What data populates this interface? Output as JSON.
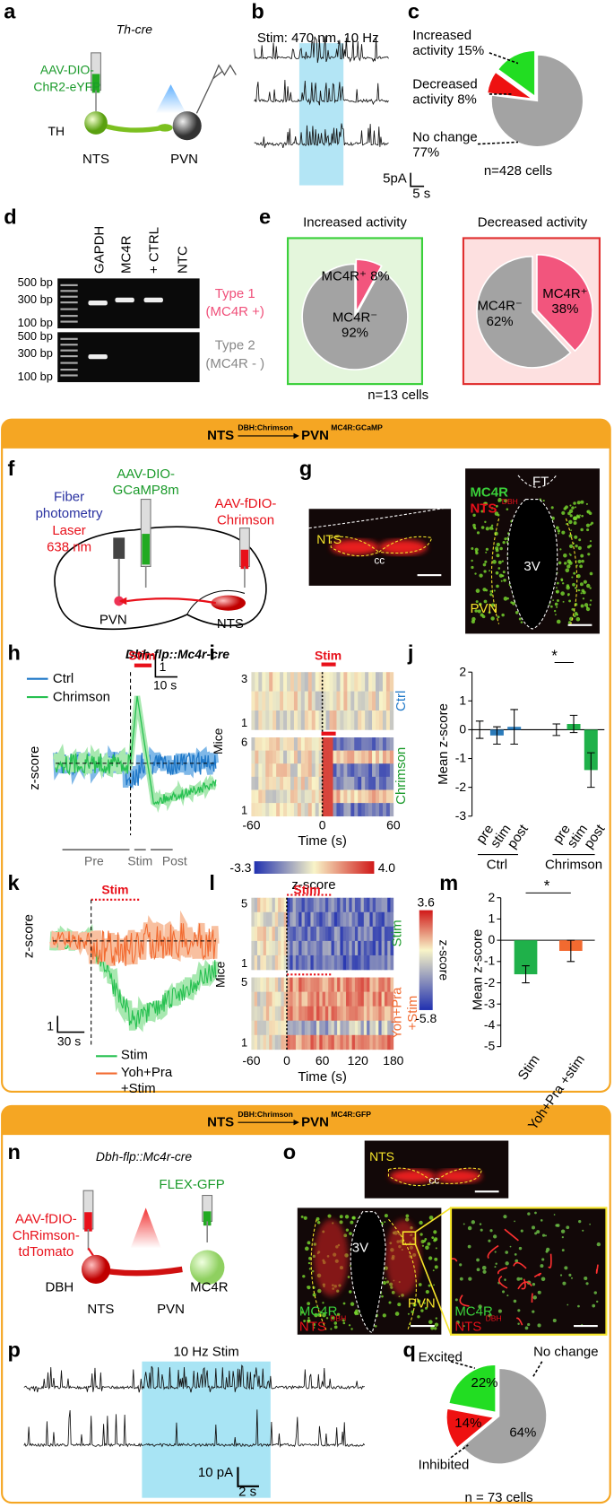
{
  "panels": {
    "a": {
      "letter": "a",
      "genotype": "Th-cre",
      "virus_1": "AAV-DIO-",
      "virus_2": "ChR2-eYFP",
      "cell": "TH",
      "source": "NTS",
      "target": "PVN"
    },
    "b": {
      "letter": "b",
      "stim": "Stim: 470 nm, 10 Hz",
      "scale_y": "5pA",
      "scale_x": "5 s"
    },
    "c": {
      "letter": "c",
      "n": "n=428 cells"
    },
    "d": {
      "letter": "d",
      "lanes": [
        "GAPDH",
        "MC4R",
        "+ CTRL",
        "NTC"
      ],
      "ladder": [
        "500 bp",
        "300 bp",
        "100 bp",
        "500 bp",
        "300 bp",
        "100 bp"
      ],
      "type1": [
        "Type 1",
        "(MC4R +)"
      ],
      "type2": [
        "Type 2",
        "(MC4R - )"
      ]
    },
    "e": {
      "letter": "e",
      "n": "n=13 cells"
    },
    "header1": {
      "pre": "NTS",
      "pre_sup": "DBH:Chrimson",
      "post": "PVN",
      "post_sup": "MC4R:GCaMP"
    },
    "f": {
      "letter": "f",
      "virus_1": [
        "AAV-DIO-",
        "GCaMP8m"
      ],
      "fiber": [
        "Fiber",
        "photometry"
      ],
      "laser": [
        "Laser",
        "638 nm"
      ],
      "virus_2": [
        "AAV-fDIO-",
        "Chrimson"
      ],
      "target": "PVN",
      "source": "NTS",
      "genotype": "Dbh-flp::Mc4r-cre"
    },
    "g": {
      "letter": "g",
      "nts": "NTS",
      "cc": "cc",
      "marker": "MC4R",
      "nts2": "NTS",
      "nts2_sup": "DBH",
      "ft": "FT",
      "v3": "3V",
      "pvn": "PVN"
    },
    "h": {
      "letter": "h",
      "stim": "Stim",
      "scale_y": "1",
      "scale_x": "10 s",
      "legend": [
        "Ctrl",
        "Chrimson"
      ],
      "ylabel": "z-score",
      "epochs": [
        "Pre",
        "Stim",
        "Post"
      ]
    },
    "i": {
      "letter": "i",
      "stim": "Stim",
      "ylabel": "Mice",
      "mice": [
        "3",
        "1",
        "6",
        "1"
      ],
      "groups": [
        "Ctrl",
        "Chrimson"
      ],
      "xticks": [
        "-60",
        "0",
        "60"
      ],
      "xlabel": "Time (s)",
      "cbar": [
        "-3.3",
        "4.0"
      ],
      "cbar_label": "z-score"
    },
    "j": {
      "letter": "j"
    },
    "k": {
      "letter": "k",
      "stim": "Stim",
      "ylabel": "z-score",
      "scale_y": "1",
      "scale_x": "30 s",
      "legend": [
        "Stim",
        "Yoh+Pra",
        "+Stim"
      ]
    },
    "l": {
      "letter": "l",
      "stim": "Stim",
      "ylabel": "Mice",
      "mice": [
        "5",
        "1",
        "5",
        "1"
      ],
      "groups": [
        "Stim",
        "Yoh+Pra",
        "+Stim"
      ],
      "xticks": [
        "-60",
        "0",
        "60",
        "120",
        "180"
      ],
      "xlabel": "Time (s)",
      "cbar": [
        "3.6",
        "-5.8"
      ],
      "cbar_label": "z-score"
    },
    "m": {
      "letter": "m"
    },
    "header2": {
      "pre": "NTS",
      "pre_sup": "DBH:Chrimson",
      "post": "PVN",
      "post_sup": "MC4R:GFP"
    },
    "n": {
      "letter": "n",
      "genotype": "Dbh-flp::Mc4r-cre",
      "virus_1": "FLEX-GFP",
      "virus_2": [
        "AAV-fDIO-",
        "ChRimson-",
        "tdTomato"
      ],
      "cell_1": "DBH",
      "cell_2": "MC4R",
      "source": "NTS",
      "target": "PVN"
    },
    "o": {
      "letter": "o",
      "nts": "NTS",
      "cc": "cc",
      "v3": "3V",
      "pvn": "PVN",
      "marker": [
        "MC4R",
        "MC4R"
      ],
      "nts2": [
        "NTS",
        "NTS"
      ],
      "nts2_sup": [
        "DBH",
        "DBH"
      ]
    },
    "p": {
      "letter": "p",
      "stim": "10 Hz Stim",
      "scale_y": "10 pA",
      "scale_x": "2 s"
    },
    "q": {
      "letter": "q",
      "n": "n = 73 cells"
    }
  },
  "chart_data": [
    {
      "type": "pie",
      "categories": [
        "Increased activity",
        "Decreased activity",
        "No change"
      ],
      "values": [
        15,
        8,
        77
      ],
      "value_labels": [
        "15%",
        "8%",
        "77%"
      ],
      "colors": [
        "#22dd22",
        "#ee1111",
        "#a3a3a3"
      ]
    },
    {
      "type": "pie",
      "title": "Increased activity",
      "categories": [
        "MC4R⁺",
        "MC4R⁻"
      ],
      "values": [
        8,
        92
      ],
      "value_labels": [
        "8%",
        "92%"
      ],
      "colors": [
        "#f2557d",
        "#a3a3a3"
      ]
    },
    {
      "type": "pie",
      "title": "Decreased activity",
      "categories": [
        "MC4R⁺",
        "MC4R⁻"
      ],
      "values": [
        38,
        62
      ],
      "value_labels": [
        "38%",
        "62%"
      ],
      "colors": [
        "#f2557d",
        "#a3a3a3"
      ]
    },
    {
      "type": "bar",
      "ylabel": "Mean z-score",
      "categories": [
        "pre",
        "stim",
        "post",
        "pre",
        "stim",
        "post"
      ],
      "groups": [
        "Ctrl",
        "Chrimson"
      ],
      "values": [
        0,
        -0.2,
        0.1,
        0,
        0.2,
        -1.4
      ],
      "errors": [
        0.3,
        0.3,
        0.6,
        0.2,
        0.3,
        0.6
      ],
      "colors": [
        "#2b7bba",
        "#2b7bba",
        "#2b7bba",
        "#1fb14a",
        "#1fb14a",
        "#1fb14a"
      ],
      "ylim": [
        -3,
        2
      ],
      "yticks": [
        2,
        1,
        0,
        -1,
        -2,
        -3
      ],
      "annotation": "*"
    },
    {
      "type": "bar",
      "ylabel": "Mean z-score",
      "categories": [
        "Stim",
        "Yoh+Pra +stim"
      ],
      "values": [
        -1.6,
        -0.5
      ],
      "errors": [
        0.4,
        0.5
      ],
      "colors": [
        "#1fb14a",
        "#f26a30"
      ],
      "ylim": [
        -5,
        2
      ],
      "yticks": [
        2,
        1,
        0,
        -1,
        -2,
        -3,
        -4,
        -5
      ],
      "annotation": "*"
    },
    {
      "type": "pie",
      "categories": [
        "Excited",
        "Inhibited",
        "No change"
      ],
      "values": [
        22,
        14,
        64
      ],
      "value_labels": [
        "22%",
        "14%",
        "64%"
      ],
      "colors": [
        "#22dd22",
        "#ee1111",
        "#a3a3a3"
      ]
    }
  ]
}
